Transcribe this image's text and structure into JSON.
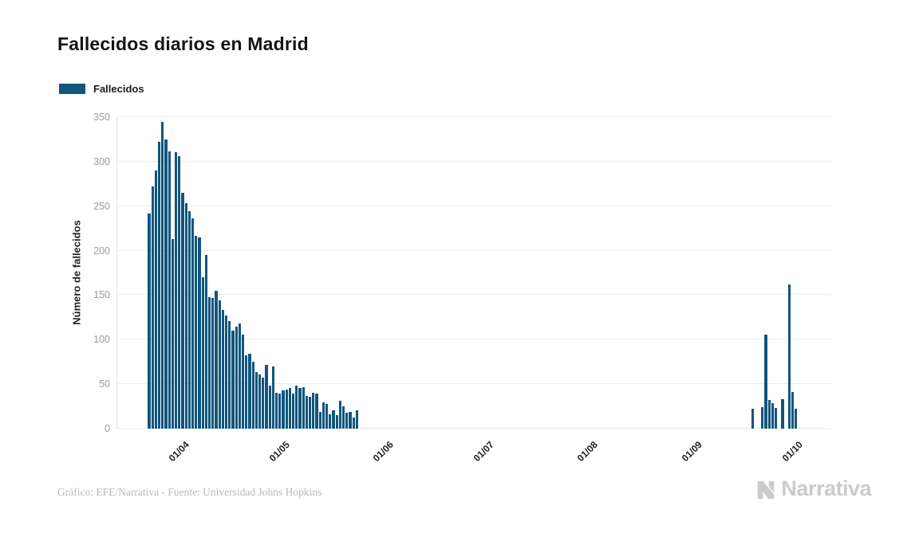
{
  "title": "Fallecidos diarios en Madrid",
  "legend": {
    "label": "Fallecidos",
    "color": "#11567d"
  },
  "footer": {
    "credit": "Gráfico: EFE/Narrativa - Fuente: Universidad Johns Hopkins",
    "brand": "Narrativa"
  },
  "chart_data": {
    "type": "bar",
    "title": "Fallecidos diarios en Madrid",
    "xlabel": "",
    "ylabel": "Número de fallecidos",
    "ylim": [
      0,
      350
    ],
    "yticks": [
      0,
      50,
      100,
      150,
      200,
      250,
      300,
      350
    ],
    "xticks": [
      "01/04",
      "01/05",
      "01/06",
      "01/07",
      "01/08",
      "01/09",
      "01/10"
    ],
    "grid": true,
    "legend_position": "top-left",
    "bar_color": "#11567d",
    "zero_marker_color": "#e3e3e3",
    "x_domain": [
      "14/03",
      "12/10"
    ],
    "series": [
      {
        "name": "Fallecidos",
        "start_date": "23/03",
        "daily_values": [
          242,
          272,
          290,
          322,
          345,
          325,
          312,
          213,
          311,
          306,
          265,
          253,
          244,
          236,
          217,
          215,
          170,
          195,
          148,
          147,
          155,
          144,
          133,
          127,
          121,
          110,
          115,
          118,
          106,
          82,
          84,
          75,
          64,
          61,
          57,
          72,
          48,
          70,
          40,
          39,
          43,
          44,
          46,
          39,
          48,
          46,
          47,
          37,
          36,
          40,
          39,
          19,
          30,
          28,
          16,
          21,
          15,
          31,
          25,
          18,
          19,
          13,
          21,
          0,
          0,
          0,
          0,
          0,
          0,
          0,
          0,
          0,
          0,
          0,
          0,
          0,
          0,
          0,
          0,
          0,
          0,
          0,
          0,
          0,
          0,
          0,
          0,
          0,
          0,
          0,
          0,
          0,
          0,
          0,
          0,
          0,
          0,
          0,
          0,
          0,
          0,
          0,
          0,
          0,
          0,
          0,
          0,
          0,
          0,
          0,
          0,
          0,
          0,
          0,
          0,
          0,
          0,
          0,
          0,
          0,
          0,
          0,
          0,
          0,
          0,
          0,
          0,
          0,
          0,
          0,
          0,
          0,
          0,
          0,
          0,
          0,
          0,
          0,
          0,
          0,
          0,
          0,
          0,
          0,
          0,
          0,
          0,
          0,
          0,
          0,
          0,
          0,
          0,
          0,
          0,
          0,
          0,
          0,
          0,
          0,
          0,
          0,
          0,
          0,
          0,
          0,
          0,
          0,
          0,
          0,
          0,
          0,
          0,
          0,
          0,
          0,
          0,
          0,
          0,
          0,
          22,
          0,
          0,
          24,
          106,
          32,
          29,
          23,
          0,
          33,
          0,
          162,
          41,
          22,
          0,
          0,
          0,
          0,
          0,
          0,
          0,
          0,
          0,
          0
        ]
      }
    ]
  }
}
